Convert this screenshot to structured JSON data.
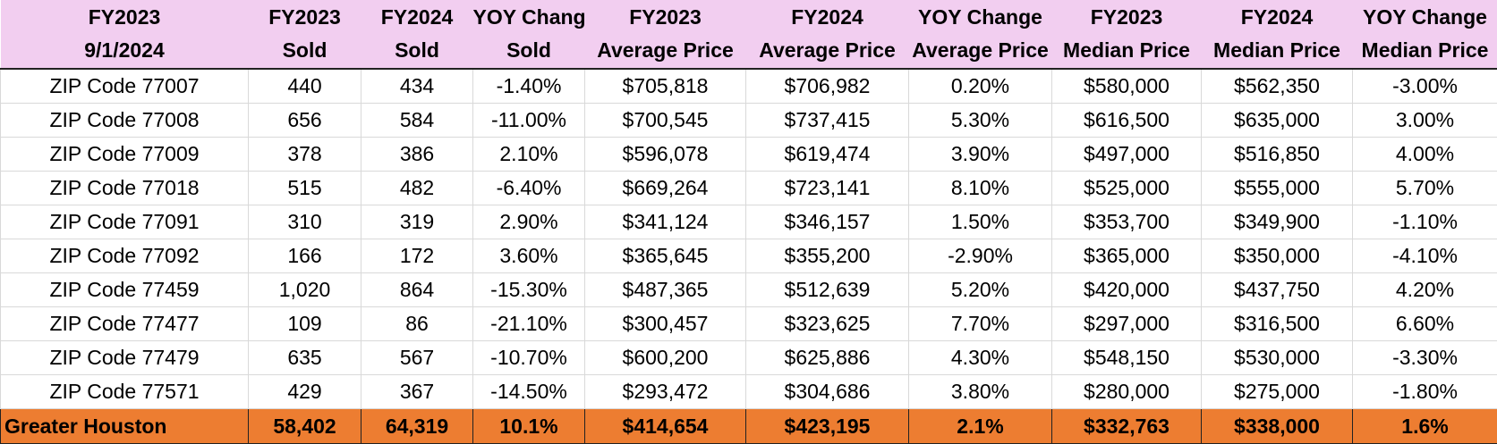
{
  "table": {
    "header": [
      [
        "FY2023",
        "9/1/2024"
      ],
      [
        "FY2023",
        "Sold"
      ],
      [
        "FY2024",
        "Sold"
      ],
      [
        "YOY Change",
        "Sold"
      ],
      [
        "FY2023",
        "Average Price"
      ],
      [
        "FY2024",
        "Average Price"
      ],
      [
        "YOY Change",
        "Average Price"
      ],
      [
        "FY2023",
        "Median Price"
      ],
      [
        "FY2024",
        "Median Price"
      ],
      [
        "YOY Change",
        "Median Price"
      ]
    ],
    "rows": [
      [
        "ZIP Code 77007",
        "440",
        "434",
        "-1.40%",
        "$705,818",
        "$706,982",
        "0.20%",
        "$580,000",
        "$562,350",
        "-3.00%"
      ],
      [
        "ZIP Code 77008",
        "656",
        "584",
        "-11.00%",
        "$700,545",
        "$737,415",
        "5.30%",
        "$616,500",
        "$635,000",
        "3.00%"
      ],
      [
        "ZIP Code 77009",
        "378",
        "386",
        "2.10%",
        "$596,078",
        "$619,474",
        "3.90%",
        "$497,000",
        "$516,850",
        "4.00%"
      ],
      [
        "ZIP Code 77018",
        "515",
        "482",
        "-6.40%",
        "$669,264",
        "$723,141",
        "8.10%",
        "$525,000",
        "$555,000",
        "5.70%"
      ],
      [
        "ZIP Code 77091",
        "310",
        "319",
        "2.90%",
        "$341,124",
        "$346,157",
        "1.50%",
        "$353,700",
        "$349,900",
        "-1.10%"
      ],
      [
        "ZIP Code 77092",
        "166",
        "172",
        "3.60%",
        "$365,645",
        "$355,200",
        "-2.90%",
        "$365,000",
        "$350,000",
        "-4.10%"
      ],
      [
        "ZIP Code 77459",
        "1,020",
        "864",
        "-15.30%",
        "$487,365",
        "$512,639",
        "5.20%",
        "$420,000",
        "$437,750",
        "4.20%"
      ],
      [
        "ZIP Code 77477",
        "109",
        "86",
        "-21.10%",
        "$300,457",
        "$323,625",
        "7.70%",
        "$297,000",
        "$316,500",
        "6.60%"
      ],
      [
        "ZIP Code 77479",
        "635",
        "567",
        "-10.70%",
        "$600,200",
        "$625,886",
        "4.30%",
        "$548,150",
        "$530,000",
        "-3.30%"
      ],
      [
        "ZIP Code 77571",
        "429",
        "367",
        "-14.50%",
        "$293,472",
        "$304,686",
        "3.80%",
        "$280,000",
        "$275,000",
        "-1.80%"
      ]
    ],
    "total": [
      "Greater Houston",
      "58,402",
      "64,319",
      "10.1%",
      "$414,654",
      "$423,195",
      "2.1%",
      "$332,763",
      "$338,000",
      "1.6%"
    ]
  }
}
